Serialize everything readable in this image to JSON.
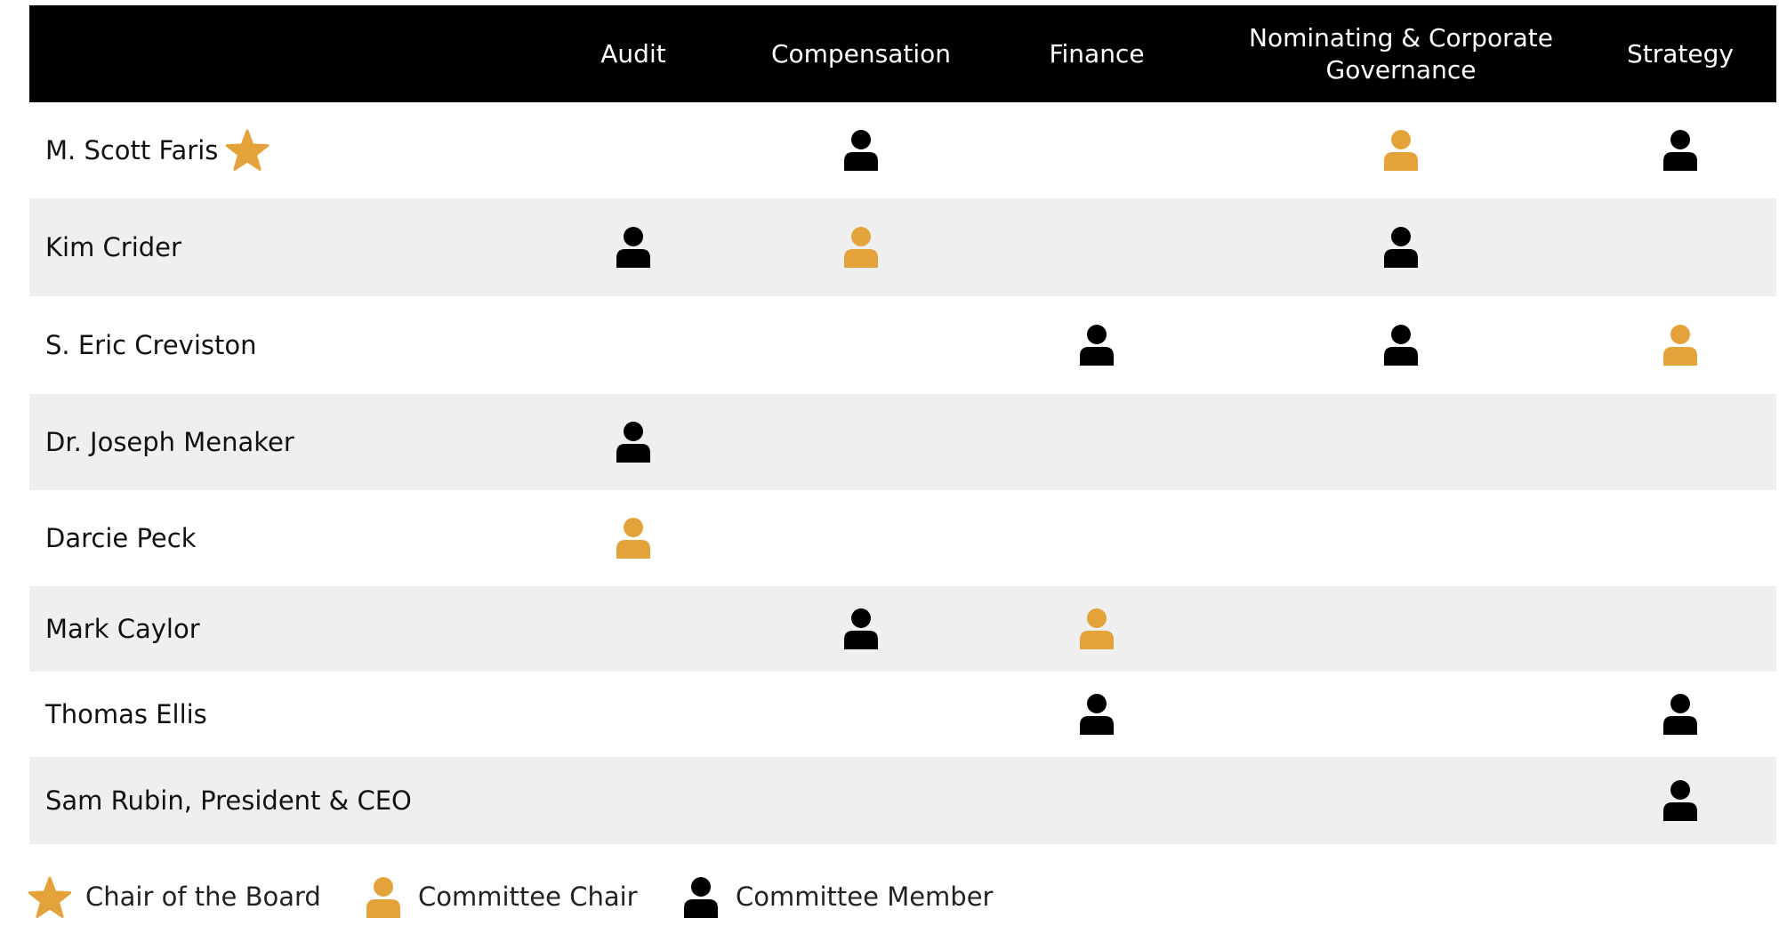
{
  "header": {
    "columns": [
      "Audit",
      "Compensation",
      "Finance",
      "Nominating & Corporate Governance",
      "Strategy"
    ]
  },
  "rows": [
    {
      "name": "M. Scott Faris",
      "board_chair": true,
      "roles": [
        null,
        "member",
        null,
        "chair",
        "member"
      ]
    },
    {
      "name": "Kim Crider",
      "board_chair": false,
      "roles": [
        "member",
        "chair",
        null,
        "member",
        null
      ]
    },
    {
      "name": "S. Eric Creviston",
      "board_chair": false,
      "roles": [
        null,
        null,
        "member",
        "member",
        "chair"
      ]
    },
    {
      "name": "Dr. Joseph Menaker",
      "board_chair": false,
      "roles": [
        "member",
        null,
        null,
        null,
        null
      ]
    },
    {
      "name": "Darcie Peck",
      "board_chair": false,
      "roles": [
        "chair",
        null,
        null,
        null,
        null
      ]
    },
    {
      "name": "Mark Caylor",
      "board_chair": false,
      "roles": [
        null,
        "member",
        "chair",
        null,
        null
      ]
    },
    {
      "name": "Thomas Ellis",
      "board_chair": false,
      "roles": [
        null,
        null,
        "member",
        null,
        "member"
      ]
    },
    {
      "name": "Sam Rubin, President & CEO",
      "board_chair": false,
      "roles": [
        null,
        null,
        null,
        null,
        "member"
      ]
    }
  ],
  "legend": [
    "Chair of the Board",
    "Committee Chair",
    "Committee Member"
  ]
}
